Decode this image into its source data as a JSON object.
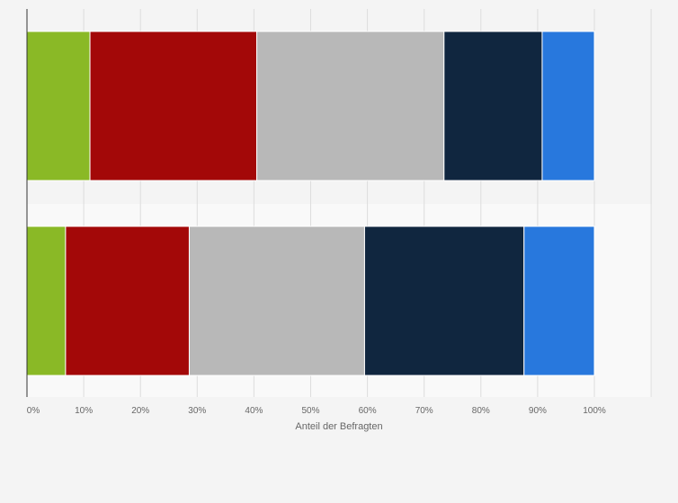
{
  "chart_data": {
    "type": "bar",
    "orientation": "horizontal",
    "stacked": true,
    "title": "",
    "xlabel": "Anteil der Befragten",
    "ylabel": "",
    "xlim": [
      0,
      100
    ],
    "x_ticks": [
      "0%",
      "10%",
      "20%",
      "30%",
      "40%",
      "50%",
      "60%",
      "70%",
      "80%",
      "90%",
      "100%"
    ],
    "grid": true,
    "legend": "none",
    "categories": [
      "",
      ""
    ],
    "series": [
      {
        "color": "#8ab926",
        "values": [
          11.1,
          6.8
        ]
      },
      {
        "color": "#a30808",
        "values": [
          29.4,
          21.8
        ]
      },
      {
        "color": "#b8b8b8",
        "values": [
          33.0,
          30.9
        ]
      },
      {
        "color": "#10263f",
        "values": [
          17.3,
          28.1
        ]
      },
      {
        "color": "#2878dd",
        "values": [
          9.2,
          12.4
        ]
      }
    ]
  }
}
